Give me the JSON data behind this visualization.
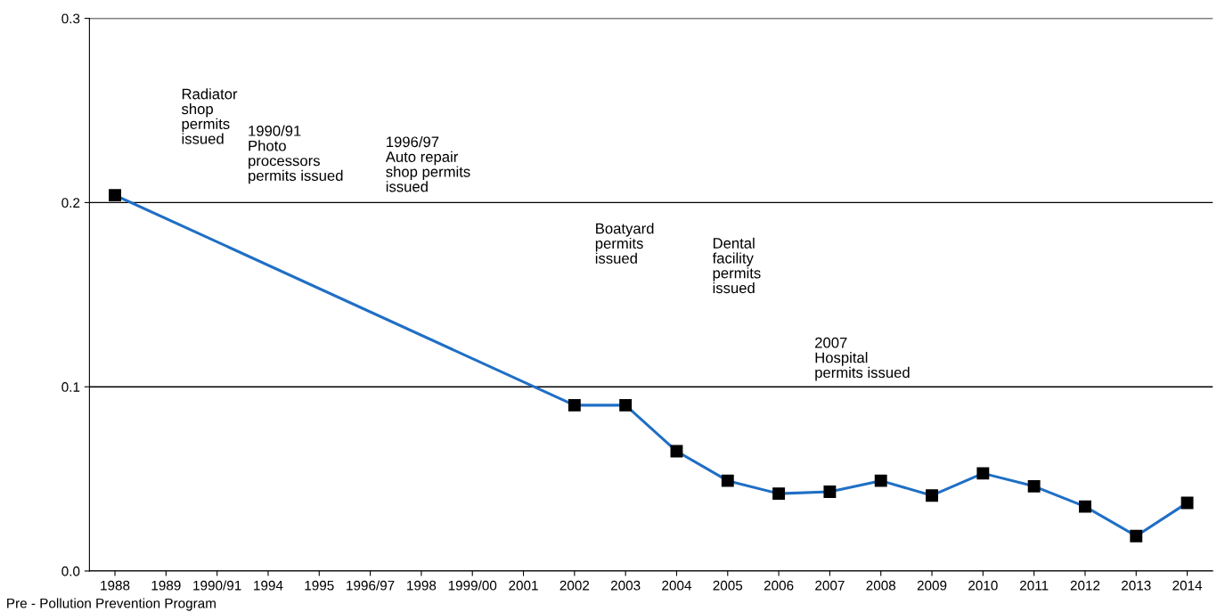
{
  "chart_data": {
    "type": "line",
    "categories": [
      "1988",
      "1989",
      "1990/91",
      "1994",
      "1995",
      "1996/97",
      "1998",
      "1999/00",
      "2001",
      "2002",
      "2003",
      "2004",
      "2005",
      "2006",
      "2007",
      "2008",
      "2009",
      "2010",
      "2011",
      "2012",
      "2013",
      "2014"
    ],
    "series": [
      {
        "color": "#1f6fc5",
        "values": [
          0.204,
          null,
          null,
          null,
          null,
          null,
          null,
          null,
          null,
          0.09,
          0.09,
          0.065,
          0.049,
          0.042,
          0.043,
          0.049,
          0.041,
          0.053,
          0.046,
          0.035,
          0.019,
          0.037
        ]
      }
    ],
    "ylim": [
      0,
      0.3
    ],
    "yticks": [
      {
        "value": 0,
        "label": "0.0"
      },
      0.1,
      0.2,
      0.3
    ],
    "grid": "y",
    "marker": "square",
    "line_style": "solid",
    "annotations": [
      "Radiator\nshop\npermits\nissued",
      "1990/91\nPhoto\nprocessors\npermits issued",
      "1996/97\nAuto repair\nshop permits\nissued",
      "Boatyard\npermits\nissued",
      "Dental\nfacility\npermits\nissued",
      "2007\nHospital\npermits issued",
      "Pre - Pollution Prevention Program"
    ]
  }
}
